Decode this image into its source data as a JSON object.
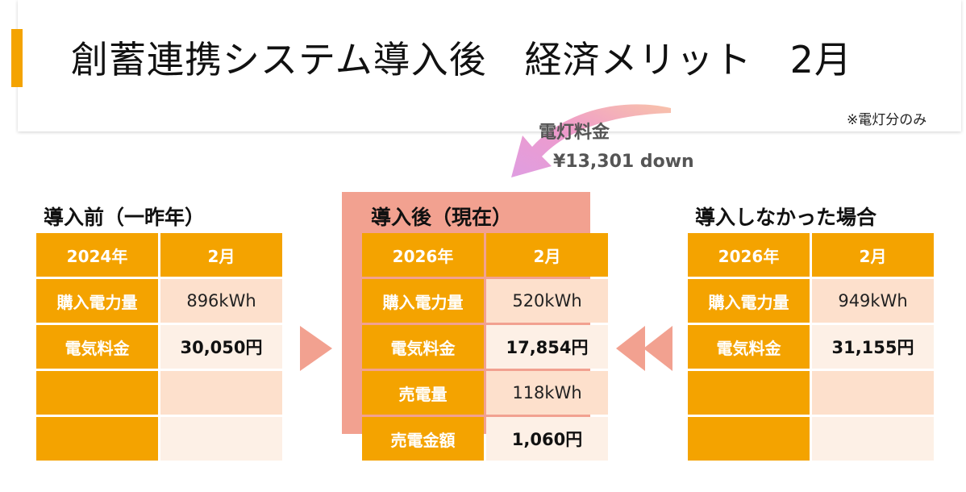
{
  "title": "創蓄連携システム導入後　経済メリット　2月",
  "note": "※電灯分のみ",
  "savings": {
    "label": "電灯料金",
    "amount": "¥13,301 down"
  },
  "colors": {
    "accent": "#f4a300",
    "pink": "#f2a190",
    "cell_light": "#fde0cc",
    "cell_lighter": "#fdf0e6"
  },
  "before": {
    "heading": "導入前（一昨年）",
    "year": "2024年",
    "month": "2月",
    "rows": [
      {
        "label": "購入電力量",
        "value": "896kWh"
      },
      {
        "label": "電気料金",
        "value": "30,050円"
      }
    ]
  },
  "after": {
    "heading": "導入後（現在）",
    "year": "2026年",
    "month": "2月",
    "rows": [
      {
        "label": "購入電力量",
        "value": "520kWh"
      },
      {
        "label": "電気料金",
        "value": "17,854円"
      },
      {
        "label": "売電量",
        "value": "118kWh"
      },
      {
        "label": "売電金額",
        "value": "1,060円"
      }
    ]
  },
  "without": {
    "heading": "導入しなかった場合",
    "year": "2026年",
    "month": "2月",
    "rows": [
      {
        "label": "購入電力量",
        "value": "949kWh"
      },
      {
        "label": "電気料金",
        "value": "31,155円"
      }
    ]
  }
}
